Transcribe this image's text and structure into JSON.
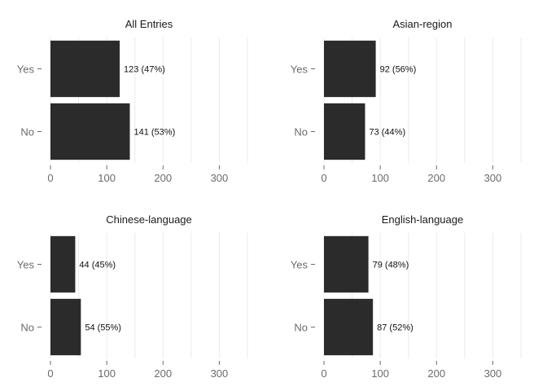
{
  "chart_data": [
    {
      "type": "bar",
      "orientation": "horizontal",
      "title": "All Entries",
      "categories": [
        "Yes",
        "No"
      ],
      "values": [
        123,
        141
      ],
      "labels": [
        "123 (47%)",
        "141 (53%)"
      ],
      "xlim": [
        0,
        350
      ],
      "xticks": [
        0,
        100,
        200,
        300
      ],
      "grid": true
    },
    {
      "type": "bar",
      "orientation": "horizontal",
      "title": "Asian-region",
      "categories": [
        "Yes",
        "No"
      ],
      "values": [
        92,
        73
      ],
      "labels": [
        "92 (56%)",
        "73 (44%)"
      ],
      "xlim": [
        0,
        350
      ],
      "xticks": [
        0,
        100,
        200,
        300
      ],
      "grid": true
    },
    {
      "type": "bar",
      "orientation": "horizontal",
      "title": "Chinese-language",
      "categories": [
        "Yes",
        "No"
      ],
      "values": [
        44,
        54
      ],
      "labels": [
        "44 (45%)",
        "54 (55%)"
      ],
      "xlim": [
        0,
        350
      ],
      "xticks": [
        0,
        100,
        200,
        300
      ],
      "grid": true
    },
    {
      "type": "bar",
      "orientation": "horizontal",
      "title": "English-language",
      "categories": [
        "Yes",
        "No"
      ],
      "values": [
        79,
        87
      ],
      "labels": [
        "79 (48%)",
        "87 (52%)"
      ],
      "xlim": [
        0,
        350
      ],
      "xticks": [
        0,
        100,
        200,
        300
      ],
      "grid": true
    }
  ],
  "colors": {
    "bar": "#2b2b2b",
    "grid": "#ebebeb",
    "text": "#6b6b6b"
  }
}
